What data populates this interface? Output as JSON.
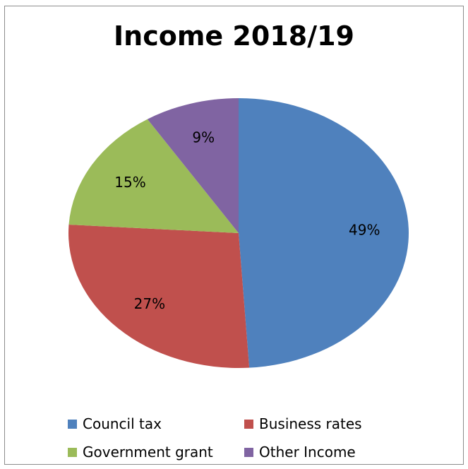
{
  "chart_data": {
    "type": "pie",
    "title": "Income 2018/19",
    "slices": [
      {
        "name": "Council tax",
        "value": 49,
        "label": "49%",
        "color": "#4f81bd"
      },
      {
        "name": "Business rates",
        "value": 27,
        "label": "27%",
        "color": "#c0504d"
      },
      {
        "name": "Government grant",
        "value": 15,
        "label": "15%",
        "color": "#9bbb59"
      },
      {
        "name": "Other Income",
        "value": 9,
        "label": "9%",
        "color": "#8064a2"
      }
    ],
    "legend_position": "bottom"
  }
}
